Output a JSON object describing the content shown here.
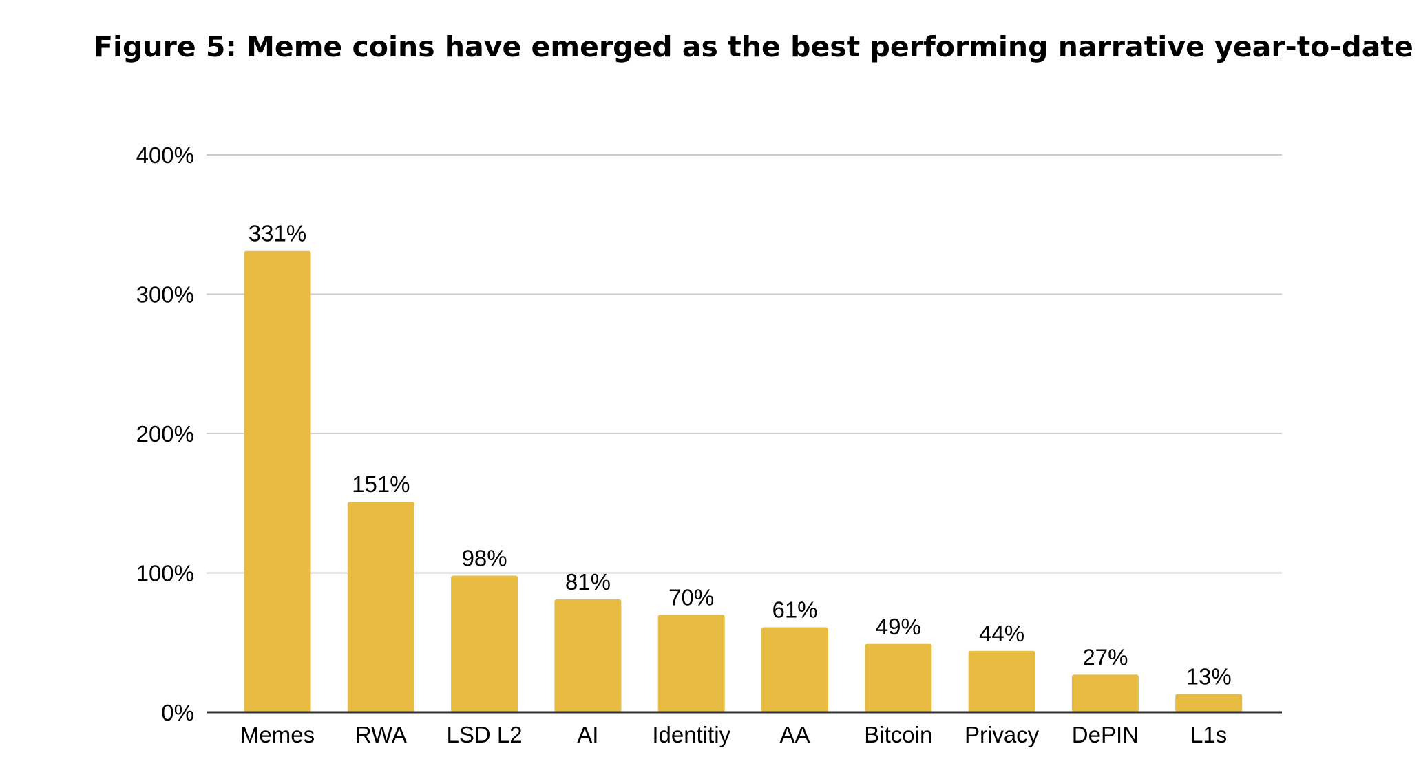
{
  "figure_title": "Figure 5: Meme coins have emerged as the best performing narrative year-to-date",
  "colors": {
    "bar": "#E8BC42",
    "grid": "#cccccc",
    "axis": "#333333",
    "text": "#000000"
  },
  "chart_data": {
    "type": "bar",
    "title": "Figure 5: Meme coins have emerged as the best performing narrative year-to-date",
    "xlabel": "",
    "ylabel": "",
    "categories": [
      "Memes",
      "RWA",
      "LSD L2",
      "AI",
      "Identitiy",
      "AA",
      "Bitcoin",
      "Privacy",
      "DePIN",
      "L1s"
    ],
    "values": [
      331,
      151,
      98,
      81,
      70,
      61,
      49,
      44,
      27,
      13
    ],
    "data_labels": [
      "331%",
      "151%",
      "98%",
      "81%",
      "70%",
      "61%",
      "49%",
      "44%",
      "27%",
      "13%"
    ],
    "ylim": [
      0,
      400
    ],
    "yticks": [
      0,
      100,
      200,
      300,
      400
    ],
    "ytick_labels": [
      "0%",
      "100%",
      "200%",
      "300%",
      "400%"
    ],
    "grid": true,
    "legend": "none"
  }
}
